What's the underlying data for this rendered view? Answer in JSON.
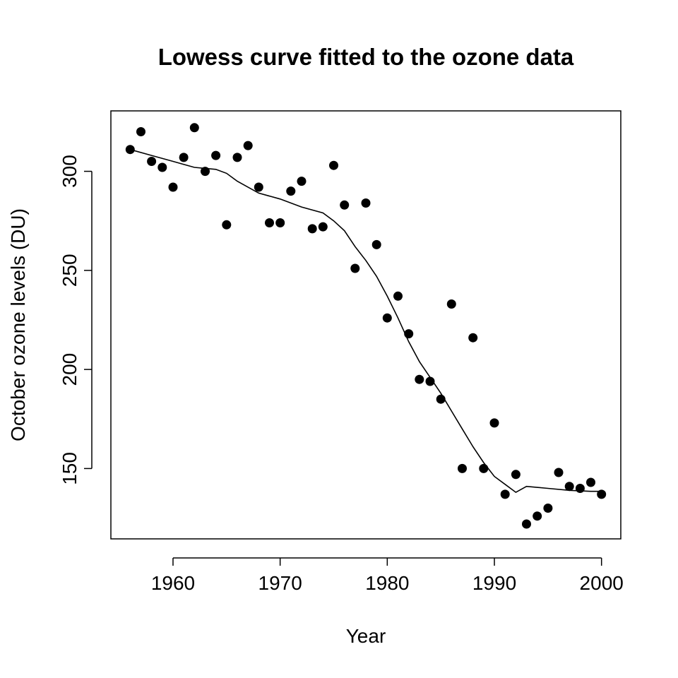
{
  "chart_data": {
    "type": "scatter",
    "title": "Lowess curve fitted to the ozone data",
    "xlabel": "Year",
    "ylabel": "October ozone levels (DU)",
    "xlim": [
      1954.2,
      2001.8
    ],
    "ylim": [
      114.5,
      330.5
    ],
    "x_ticks": [
      1960,
      1970,
      1980,
      1990,
      2000
    ],
    "y_ticks": [
      150,
      200,
      250,
      300
    ],
    "grid": false,
    "legend": "none",
    "colors": {
      "points": "#000000",
      "line": "#000000",
      "frame": "#000000"
    },
    "series": [
      {
        "type": "scatter",
        "x": [
          1956,
          1957,
          1958,
          1959,
          1960,
          1961,
          1962,
          1963,
          1964,
          1965,
          1966,
          1967,
          1968,
          1969,
          1970,
          1971,
          1972,
          1973,
          1974,
          1975,
          1976,
          1977,
          1978,
          1979,
          1980,
          1981,
          1982,
          1983,
          1984,
          1985,
          1986,
          1987,
          1988,
          1989,
          1990,
          1991,
          1992,
          1993,
          1994,
          1995,
          1996,
          1997,
          1998,
          1999,
          2000
        ],
        "y": [
          311,
          320,
          305,
          302,
          292,
          307,
          322,
          300,
          308,
          273,
          307,
          313,
          292,
          274,
          274,
          290,
          295,
          271,
          272,
          303,
          283,
          251,
          284,
          263,
          226,
          237,
          218,
          195,
          194,
          185,
          233,
          150,
          216,
          150,
          173,
          137,
          147,
          122,
          126,
          130,
          148,
          141,
          140,
          143,
          137
        ]
      },
      {
        "type": "line",
        "x": [
          1956,
          1958,
          1960,
          1962,
          1964,
          1965,
          1966,
          1968,
          1970,
          1972,
          1974,
          1975,
          1976,
          1977,
          1978,
          1979,
          1980,
          1981,
          1982,
          1983,
          1984,
          1985,
          1986,
          1987,
          1988,
          1989,
          1990,
          1991,
          1992,
          1993,
          1995,
          1997,
          1999,
          2000
        ],
        "y": [
          311,
          308,
          305,
          302,
          301,
          299,
          295,
          289,
          286,
          282,
          279,
          275,
          270,
          262,
          255,
          247,
          237,
          226,
          214,
          204,
          196,
          188,
          179,
          170,
          161,
          153,
          146,
          142,
          138,
          141,
          140,
          139,
          138.5,
          138.5
        ]
      }
    ]
  }
}
